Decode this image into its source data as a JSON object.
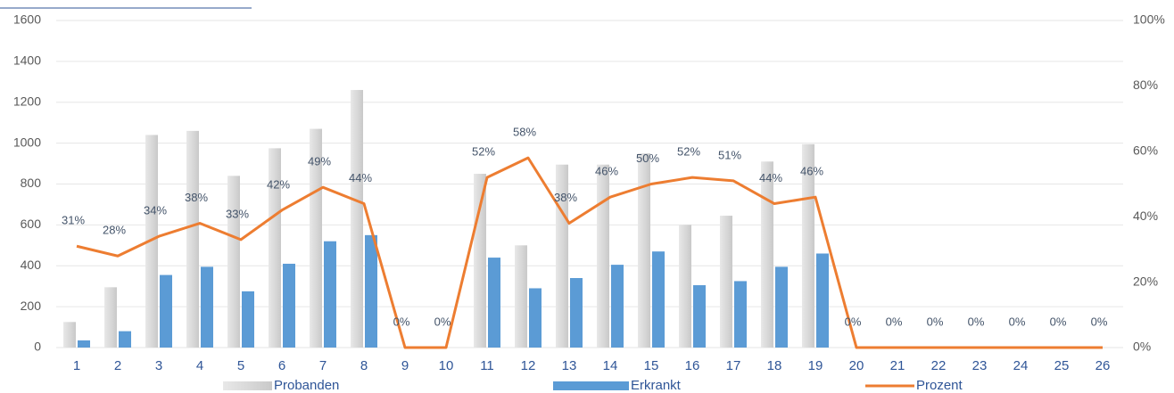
{
  "chart_data": {
    "type": "bar-line",
    "categories": [
      "1",
      "2",
      "3",
      "4",
      "5",
      "6",
      "7",
      "8",
      "9",
      "10",
      "11",
      "12",
      "13",
      "14",
      "15",
      "16",
      "17",
      "18",
      "19",
      "20",
      "21",
      "22",
      "23",
      "24",
      "25",
      "26"
    ],
    "series": [
      {
        "name": "Probanden",
        "type": "bar",
        "color": "#d9d9d9",
        "values": [
          125,
          295,
          1040,
          1060,
          840,
          975,
          1070,
          1260,
          0,
          0,
          850,
          500,
          895,
          895,
          950,
          600,
          645,
          910,
          995,
          0,
          0,
          0,
          0,
          0,
          0,
          0
        ]
      },
      {
        "name": "Erkrankt",
        "type": "bar",
        "color": "#5b9bd5",
        "values": [
          35,
          80,
          355,
          395,
          275,
          410,
          520,
          550,
          0,
          0,
          440,
          290,
          340,
          405,
          470,
          305,
          325,
          395,
          460,
          0,
          0,
          0,
          0,
          0,
          0,
          0
        ]
      },
      {
        "name": "Prozent",
        "type": "line",
        "axis": "y2",
        "color": "#ed7d31",
        "values": [
          31,
          28,
          34,
          38,
          33,
          42,
          49,
          44,
          0,
          0,
          52,
          58,
          38,
          46,
          50,
          52,
          51,
          44,
          46,
          0,
          0,
          0,
          0,
          0,
          0,
          0
        ],
        "value_labels": [
          "31%",
          "28%",
          "34%",
          "38%",
          "33%",
          "42%",
          "49%",
          "44%",
          "0%",
          "0%",
          "52%",
          "58%",
          "38%",
          "46%",
          "50%",
          "52%",
          "51%",
          "44%",
          "46%",
          "0%",
          "0%",
          "0%",
          "0%",
          "0%",
          "0%",
          "0%"
        ]
      }
    ],
    "ylim": [
      0,
      1600
    ],
    "yticks": [
      0,
      200,
      400,
      600,
      800,
      1000,
      1200,
      1400,
      1600
    ],
    "y2lim": [
      0,
      100
    ],
    "y2ticks": [
      {
        "value": 0,
        "label": "0%"
      },
      {
        "value": 20,
        "label": "20%"
      },
      {
        "value": 40,
        "label": "40%"
      },
      {
        "value": 60,
        "label": "60%"
      },
      {
        "value": 80,
        "label": "80%"
      },
      {
        "value": 100,
        "label": "100%"
      }
    ],
    "grid": true,
    "legend": "bottom"
  }
}
